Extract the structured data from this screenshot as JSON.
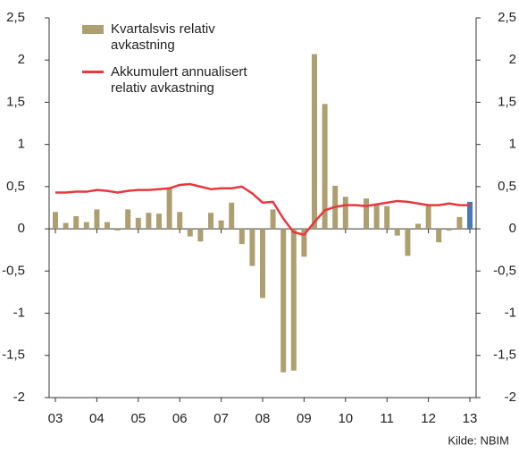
{
  "chart_data": {
    "type": "bar_line",
    "categories": [
      "03",
      null,
      null,
      null,
      "04",
      null,
      null,
      null,
      "05",
      null,
      null,
      null,
      "06",
      null,
      null,
      null,
      "07",
      null,
      null,
      null,
      "08",
      null,
      null,
      null,
      "09",
      null,
      null,
      null,
      "10",
      null,
      null,
      null,
      "11",
      null,
      null,
      null,
      "12",
      null,
      null,
      null,
      "13"
    ],
    "series": [
      {
        "name": "Kvartalsvis relativ avkastning",
        "type": "bar",
        "color": "#ad9f6f",
        "colors": [
          "#ad9f6f",
          "#ad9f6f",
          "#ad9f6f",
          "#ad9f6f",
          "#ad9f6f",
          "#ad9f6f",
          "#ad9f6f",
          "#ad9f6f",
          "#ad9f6f",
          "#ad9f6f",
          "#ad9f6f",
          "#ad9f6f",
          "#ad9f6f",
          "#ad9f6f",
          "#ad9f6f",
          "#ad9f6f",
          "#ad9f6f",
          "#ad9f6f",
          "#ad9f6f",
          "#ad9f6f",
          "#ad9f6f",
          "#ad9f6f",
          "#ad9f6f",
          "#ad9f6f",
          "#ad9f6f",
          "#ad9f6f",
          "#ad9f6f",
          "#ad9f6f",
          "#ad9f6f",
          "#ad9f6f",
          "#ad9f6f",
          "#ad9f6f",
          "#ad9f6f",
          "#ad9f6f",
          "#ad9f6f",
          "#ad9f6f",
          "#ad9f6f",
          "#ad9f6f",
          "#ad9f6f",
          "#ad9f6f",
          "#4a78b5"
        ],
        "values": [
          0.2,
          0.07,
          0.15,
          0.08,
          0.23,
          0.08,
          -0.02,
          0.23,
          0.13,
          0.19,
          0.18,
          0.49,
          0.2,
          -0.09,
          -0.15,
          0.19,
          0.1,
          0.31,
          -0.18,
          -0.44,
          -0.82,
          0.23,
          -1.7,
          -1.68,
          -0.33,
          2.07,
          1.48,
          0.51,
          0.38,
          0,
          0.36,
          0.28,
          0.27,
          -0.08,
          -0.32,
          0.06,
          0.27,
          -0.16,
          -0.02,
          0.14,
          0.32
        ]
      },
      {
        "name": "Akkumulert annualisert relativ avkastning",
        "type": "line",
        "color": "#e8373d",
        "values": [
          0.43,
          0.43,
          0.44,
          0.44,
          0.46,
          0.45,
          0.43,
          0.45,
          0.46,
          0.46,
          0.47,
          0.48,
          0.52,
          0.53,
          0.5,
          0.47,
          0.48,
          0.48,
          0.5,
          0.42,
          0.31,
          0.32,
          0.12,
          -0.04,
          -0.07,
          0.08,
          0.22,
          0.26,
          0.28,
          0.28,
          0.27,
          0.29,
          0.31,
          0.33,
          0.32,
          0.3,
          0.28,
          0.28,
          0.3,
          0.28,
          0.28
        ]
      }
    ],
    "ylim": [
      -2,
      2.5
    ],
    "yticks": [
      {
        "value": 2.5,
        "label": "2,5"
      },
      2,
      {
        "value": 1.5,
        "label": "1,5"
      },
      1,
      {
        "value": 0.5,
        "label": "0,5"
      },
      0,
      {
        "value": -0.5,
        "label": "-0,5"
      },
      -1,
      {
        "value": -1.5,
        "label": "-1,5"
      },
      -2
    ],
    "y2lim": [
      -2,
      2.5
    ],
    "y2ticks": [
      {
        "value": 2.5,
        "label": "2,5"
      },
      2,
      {
        "value": 1.5,
        "label": "1,5"
      },
      1,
      {
        "value": 0.5,
        "label": "0,5"
      },
      0,
      {
        "value": -0.5,
        "label": "-0,5"
      },
      -1,
      {
        "value": -1.5,
        "label": "-1,5"
      },
      -2
    ],
    "legend": "top-left",
    "source": "Kilde: NBIM"
  }
}
